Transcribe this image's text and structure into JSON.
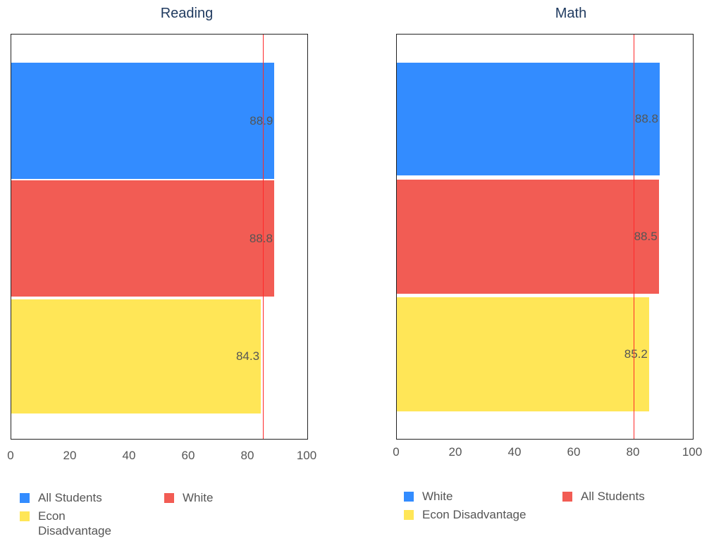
{
  "chart_data": [
    {
      "type": "bar",
      "orientation": "horizontal",
      "title": "Reading",
      "categories": [
        "All Students",
        "White",
        "Econ Disadvantage"
      ],
      "values": [
        88.9,
        88.8,
        84.3
      ],
      "value_labels": [
        "88.9",
        "88.8",
        "84.3"
      ],
      "colors": [
        "#338cff",
        "#f25c54",
        "#ffe657"
      ],
      "xlim": [
        0,
        100
      ],
      "xticks": [
        "0",
        "20",
        "40",
        "60",
        "80",
        "100"
      ],
      "reference_line": 85,
      "reference_color": "#ff2a2a",
      "legend": [
        {
          "label": "All Students",
          "color": "#338cff"
        },
        {
          "label": "White",
          "color": "#f25c54"
        },
        {
          "label": "Econ Disadvantage",
          "color": "#ffe657"
        }
      ],
      "legend_position": "bottom",
      "grid": false
    },
    {
      "type": "bar",
      "orientation": "horizontal",
      "title": "Math",
      "categories": [
        "White",
        "All Students",
        "Econ Disadvantage"
      ],
      "values": [
        88.8,
        88.5,
        85.2
      ],
      "value_labels": [
        "88.8",
        "88.5",
        "85.2"
      ],
      "colors": [
        "#338cff",
        "#f25c54",
        "#ffe657"
      ],
      "xlim": [
        0,
        100
      ],
      "xticks": [
        "0",
        "20",
        "40",
        "60",
        "80",
        "100"
      ],
      "reference_line": 80,
      "reference_color": "#ff2a2a",
      "legend": [
        {
          "label": "White",
          "color": "#338cff"
        },
        {
          "label": "All Students",
          "color": "#f25c54"
        },
        {
          "label": "Econ Disadvantage",
          "color": "#ffe657"
        }
      ],
      "legend_position": "bottom",
      "grid": false
    }
  ]
}
